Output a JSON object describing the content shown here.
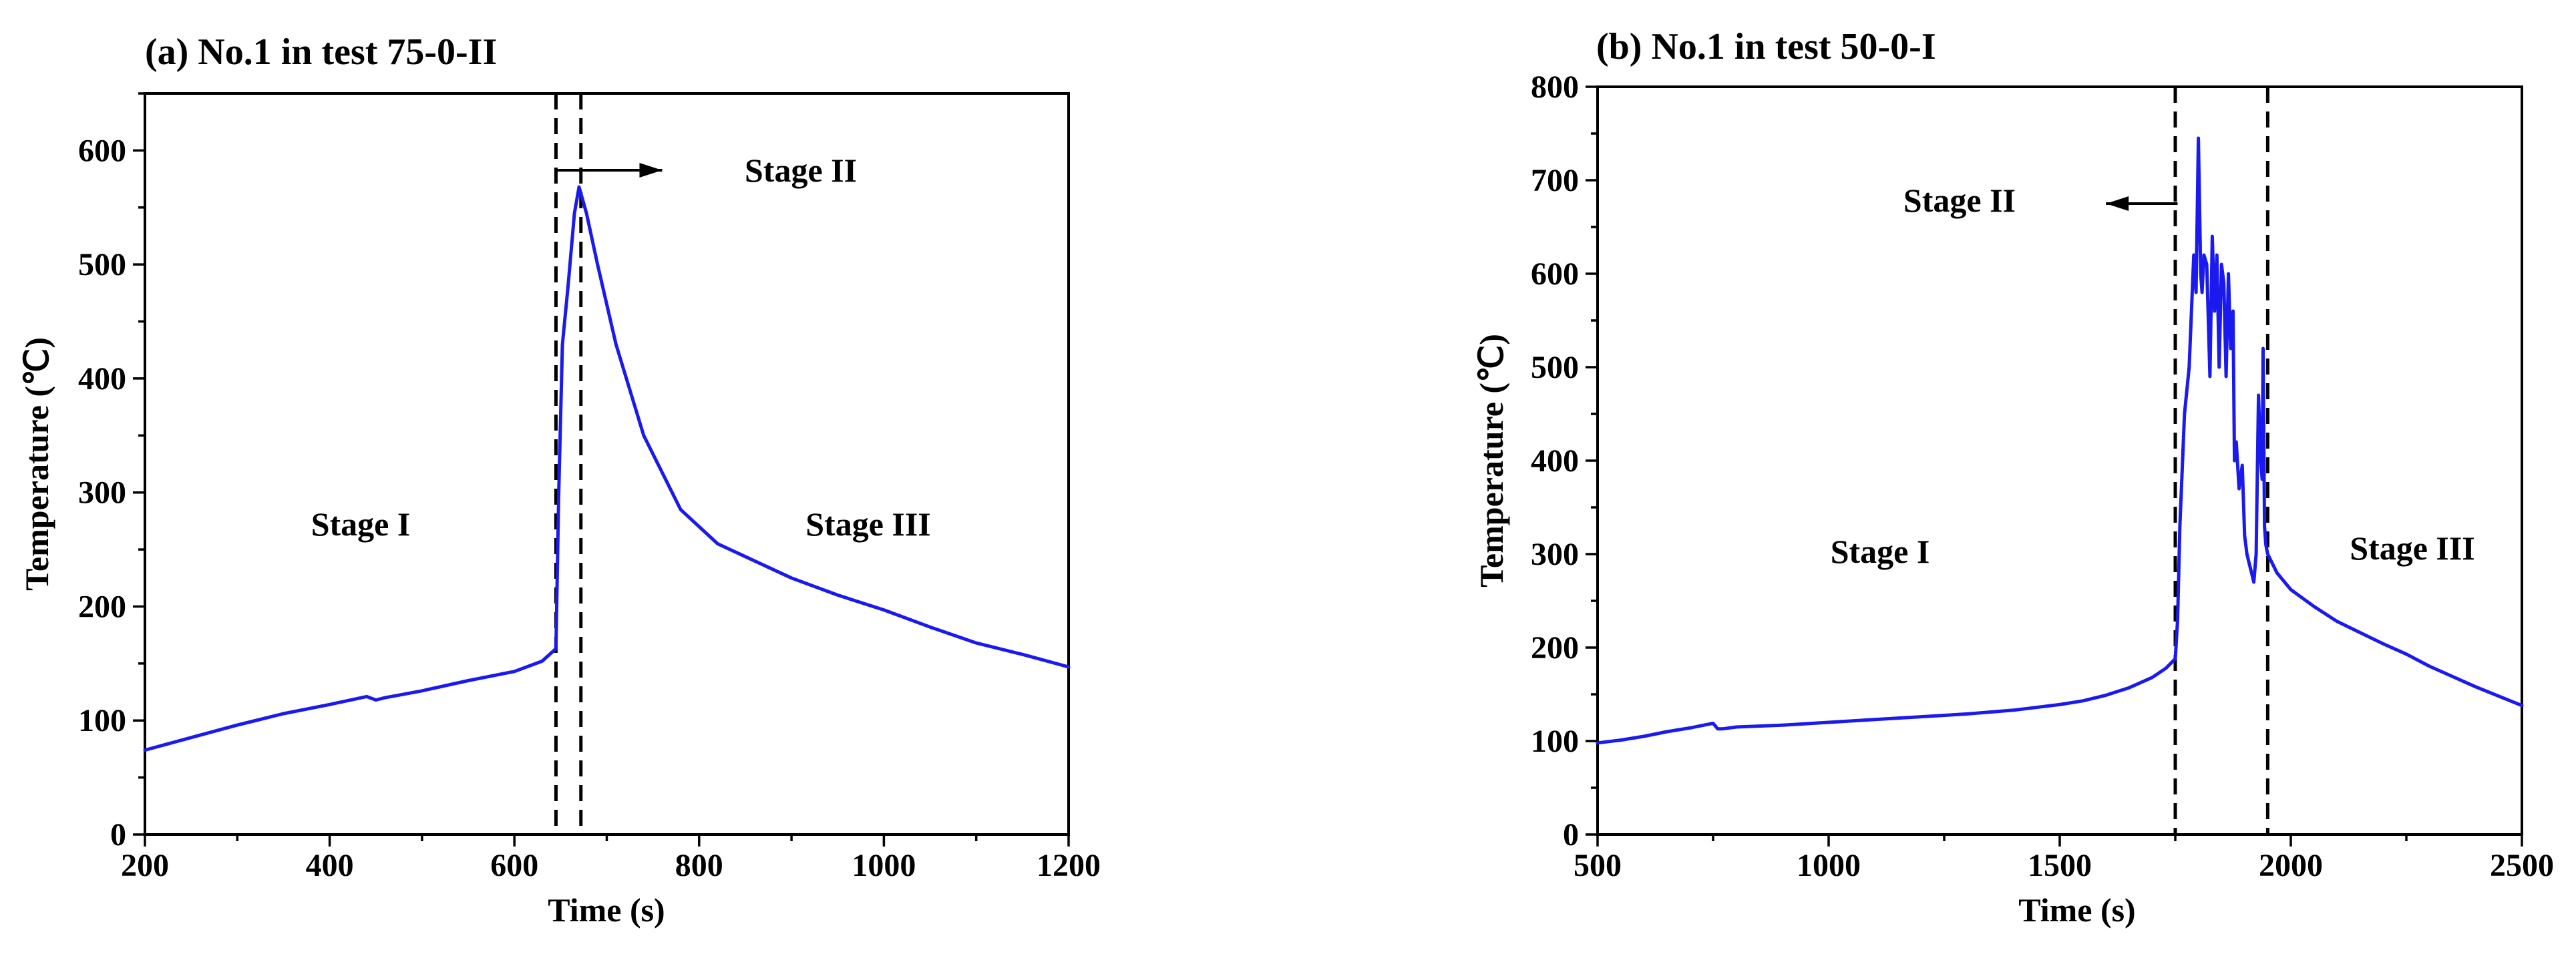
{
  "chart_data": [
    {
      "type": "line",
      "title": "(a) No.1 in test 75-0-II",
      "xlabel": "Time (s)",
      "ylabel": "Temperature (℃)",
      "xlim": [
        200,
        1200
      ],
      "ylim": [
        0,
        650
      ],
      "xticks": [
        200,
        400,
        600,
        800,
        1000,
        1200
      ],
      "yticks": [
        0,
        100,
        200,
        300,
        400,
        500,
        600
      ],
      "series": [
        {
          "name": "Temperature",
          "color": "#1a1aee",
          "x": [
            200,
            250,
            300,
            350,
            400,
            440,
            450,
            460,
            500,
            550,
            600,
            630,
            645,
            648,
            652,
            658,
            665,
            670,
            678,
            690,
            710,
            740,
            780,
            820,
            860,
            900,
            950,
            1000,
            1050,
            1100,
            1150,
            1200
          ],
          "y": [
            74,
            85,
            96,
            106,
            114,
            121,
            118,
            120,
            126,
            135,
            143,
            152,
            163,
            300,
            430,
            480,
            545,
            568,
            545,
            500,
            430,
            350,
            285,
            255,
            240,
            225,
            210,
            197,
            182,
            168,
            158,
            147
          ]
        }
      ],
      "vlines": [
        645,
        672
      ],
      "annotations": [
        {
          "text": "Stage I",
          "x": 340,
          "y": 270
        },
        {
          "text": "Stage II",
          "x": 780,
          "y": 578,
          "arrow_from": 645,
          "arrow_to": 760,
          "direction": "right"
        },
        {
          "text": "Stage III",
          "x": 910,
          "y": 270
        }
      ]
    },
    {
      "type": "line",
      "title": "(b) No.1 in test 50-0-I",
      "xlabel": "Time (s)",
      "ylabel": "Temperature (℃)",
      "xlim": [
        500,
        2500
      ],
      "ylim": [
        0,
        800
      ],
      "xticks": [
        500,
        1000,
        1500,
        2000,
        2500
      ],
      "yticks": [
        0,
        100,
        200,
        300,
        400,
        500,
        600,
        700,
        800
      ],
      "series": [
        {
          "name": "Temperature",
          "color": "#1a1aee",
          "x": [
            500,
            550,
            600,
            650,
            700,
            750,
            760,
            770,
            800,
            900,
            1000,
            1100,
            1200,
            1300,
            1400,
            1500,
            1550,
            1600,
            1650,
            1700,
            1730,
            1750,
            1755,
            1760,
            1770,
            1780,
            1790,
            1795,
            1800,
            1805,
            1808,
            1812,
            1818,
            1825,
            1830,
            1835,
            1840,
            1845,
            1850,
            1855,
            1860,
            1865,
            1870,
            1875,
            1878,
            1882,
            1888,
            1895,
            1900,
            1905,
            1910,
            1915,
            1920,
            1925,
            1930,
            1935,
            1938,
            1940,
            1943,
            1946,
            1950,
            1955,
            1960,
            1970,
            2000,
            2050,
            2100,
            2150,
            2200,
            2250,
            2300,
            2350,
            2400,
            2450,
            2500
          ],
          "y": [
            98,
            101,
            105,
            110,
            114,
            119,
            113,
            113,
            115,
            117,
            120,
            123,
            126,
            129,
            133,
            139,
            143,
            149,
            157,
            168,
            178,
            188,
            230,
            330,
            450,
            500,
            620,
            580,
            745,
            600,
            580,
            620,
            610,
            490,
            640,
            560,
            620,
            500,
            610,
            590,
            490,
            600,
            520,
            560,
            400,
            420,
            370,
            395,
            320,
            300,
            290,
            280,
            270,
            300,
            470,
            400,
            380,
            520,
            330,
            310,
            300,
            295,
            290,
            280,
            262,
            244,
            228,
            216,
            204,
            193,
            180,
            169,
            158,
            148,
            138
          ]
        }
      ],
      "vlines": [
        1750,
        1950
      ],
      "annotations": [
        {
          "text": "Stage I",
          "x": 1130,
          "y": 300
        },
        {
          "text": "Stage II",
          "x": 1395,
          "y": 675,
          "arrow_from": 1755,
          "arrow_to": 1600,
          "direction": "left"
        },
        {
          "text": "Stage III",
          "x": 2275,
          "y": 305
        }
      ]
    }
  ]
}
